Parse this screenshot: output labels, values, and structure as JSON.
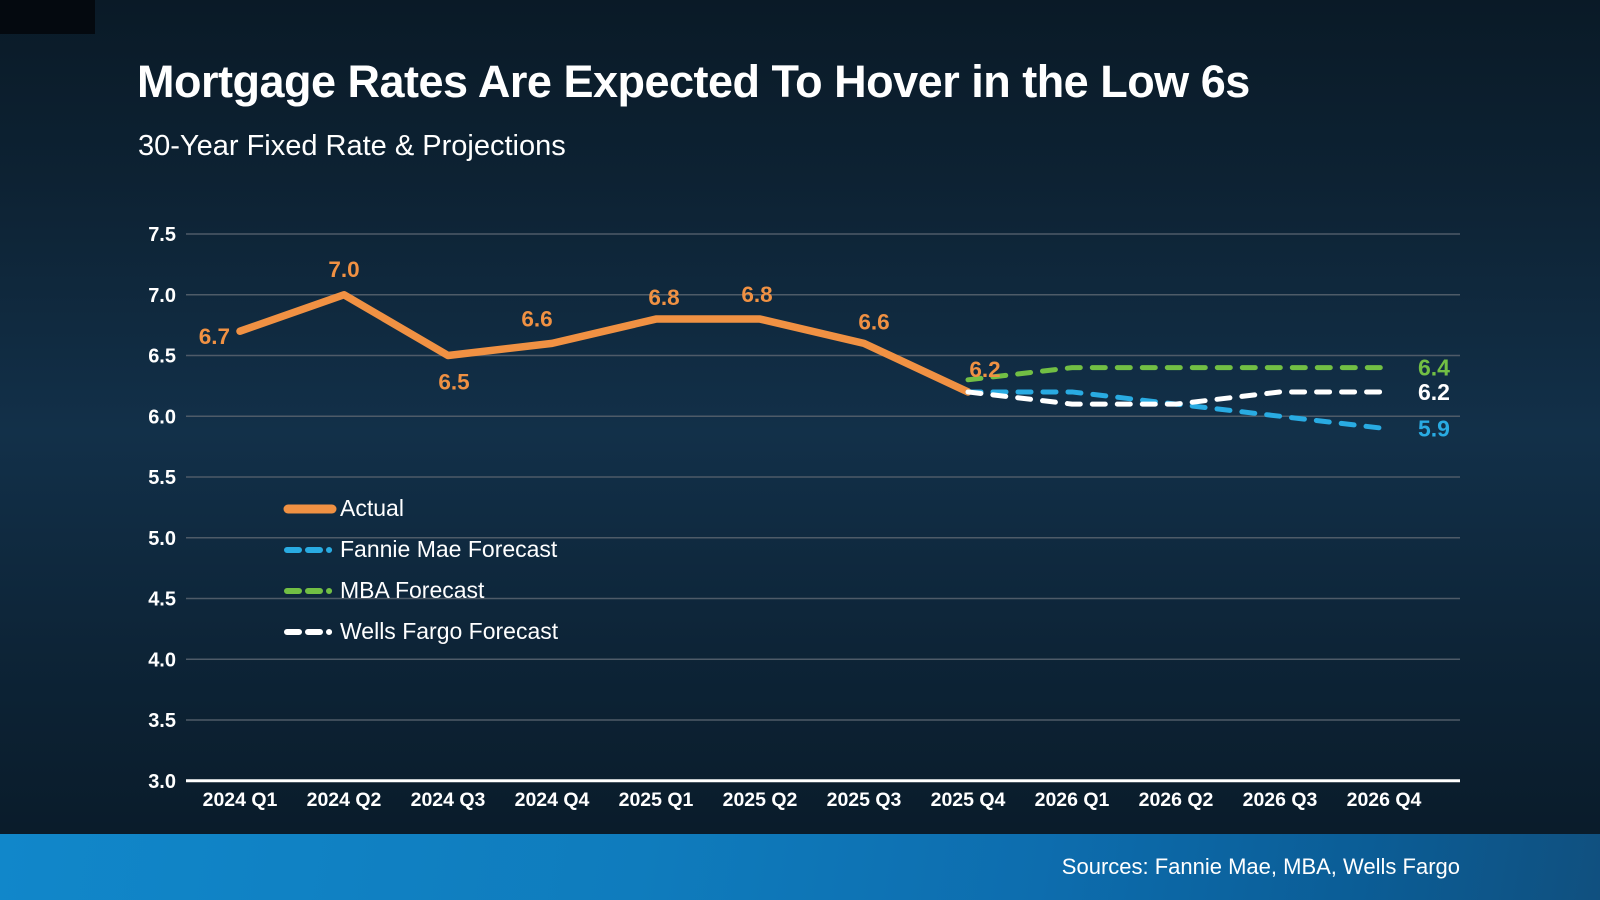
{
  "header": {
    "title": "Mortgage Rates Are Expected To Hover in the Low 6s",
    "subtitle": "30-Year Fixed Rate & Projections"
  },
  "footer": {
    "sources": "Sources: Fannie Mae, MBA, Wells Fargo"
  },
  "colors": {
    "background": "#0D2233",
    "footer_bar": "#0F7DC0",
    "gridline": "#4E5B68",
    "axis_line": "#FFFFFF",
    "text": "#FFFFFF"
  },
  "chart_data": {
    "type": "line",
    "title": "Mortgage Rates Are Expected To Hover in the Low 6s",
    "subtitle": "30-Year Fixed Rate & Projections",
    "categories": [
      "2024 Q1",
      "2024 Q2",
      "2024 Q3",
      "2024 Q4",
      "2025 Q1",
      "2025 Q2",
      "2025 Q3",
      "2025 Q4",
      "2026 Q1",
      "2026 Q2",
      "2026 Q3",
      "2026 Q4"
    ],
    "yticks": [
      "7.5",
      "7.0",
      "6.5",
      "6.0",
      "5.5",
      "5.0",
      "4.5",
      "4.0",
      "3.5",
      "3.0"
    ],
    "ylim": [
      3.0,
      7.5
    ],
    "grid": true,
    "legend_position": "middle-left",
    "series": [
      {
        "name": "Actual",
        "color": "#F09143",
        "style": "solid",
        "values": [
          6.7,
          7.0,
          6.5,
          6.6,
          6.8,
          6.8,
          6.6,
          6.2,
          null,
          null,
          null,
          null
        ],
        "point_labels": [
          "6.7",
          "7.0",
          "6.5",
          "6.6",
          "6.8",
          "6.8",
          "6.6",
          "6.2"
        ]
      },
      {
        "name": "Fannie Mae Forecast",
        "color": "#29ABE2",
        "style": "dashed",
        "values": [
          null,
          null,
          null,
          null,
          null,
          null,
          null,
          6.2,
          6.2,
          6.1,
          6.0,
          5.9
        ],
        "end_label": "5.9"
      },
      {
        "name": "MBA Forecast",
        "color": "#72BF44",
        "style": "dashed",
        "values": [
          null,
          null,
          null,
          null,
          null,
          null,
          null,
          6.3,
          6.4,
          6.4,
          6.4,
          6.4
        ],
        "end_label": "6.4"
      },
      {
        "name": "Wells Fargo Forecast",
        "color": "#FFFFFF",
        "style": "dashed",
        "values": [
          null,
          null,
          null,
          null,
          null,
          null,
          null,
          6.2,
          6.1,
          6.1,
          6.2,
          6.2
        ],
        "end_label": "6.2"
      }
    ]
  }
}
